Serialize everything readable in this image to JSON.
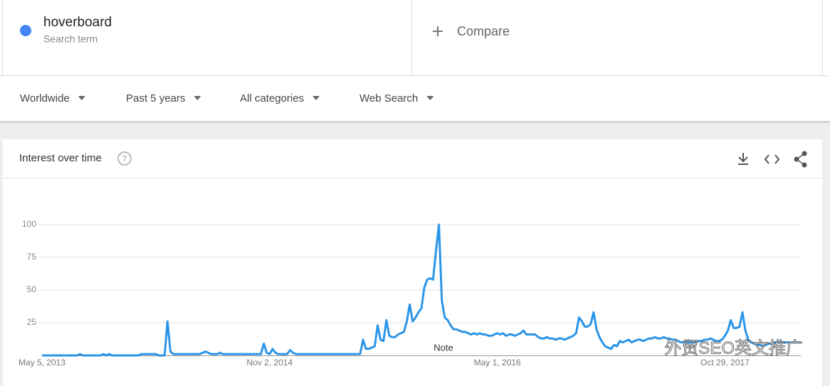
{
  "search_term": {
    "name": "hoverboard",
    "subtitle": "Search term",
    "color": "#4285f4"
  },
  "compare": {
    "label": "Compare"
  },
  "filters": [
    "Worldwide",
    "Past 5 years",
    "All categories",
    "Web Search"
  ],
  "card": {
    "title": "Interest over time"
  },
  "chart_data": {
    "type": "line",
    "x": [
      0,
      1,
      2,
      3,
      4,
      5,
      6,
      7,
      8,
      9,
      10,
      11,
      12,
      13,
      14,
      15,
      16,
      17,
      18,
      19,
      20,
      21,
      22,
      23,
      24,
      25,
      26,
      27,
      28,
      29,
      30,
      31,
      32,
      33,
      34,
      35,
      36,
      37,
      38,
      39,
      40,
      41,
      42,
      43,
      44,
      45,
      46,
      47,
      48,
      49,
      50,
      51,
      52,
      53,
      54,
      55,
      56,
      57,
      58,
      59,
      60,
      61,
      62,
      63,
      64,
      65,
      66,
      67,
      68,
      69,
      70,
      71,
      72,
      73,
      74,
      75,
      76,
      77,
      78,
      79,
      80,
      81,
      82,
      83,
      84,
      85,
      86,
      87,
      88,
      89,
      90,
      91,
      92,
      93,
      94,
      95,
      96,
      97,
      98,
      99,
      100,
      101,
      102,
      103,
      104,
      105,
      106,
      107,
      108,
      109,
      110,
      111,
      112,
      113,
      114,
      115,
      116,
      117,
      118,
      119,
      120,
      121,
      122,
      123,
      124,
      125,
      126,
      127,
      128,
      129,
      130,
      131,
      132,
      133,
      134,
      135,
      136,
      137,
      138,
      139,
      140,
      141,
      142,
      143,
      144,
      145,
      146,
      147,
      148,
      149,
      150,
      151,
      152,
      153,
      154,
      155,
      156,
      157,
      158,
      159,
      160,
      161,
      162,
      163,
      164,
      165,
      166,
      167,
      168,
      169,
      170,
      171,
      172,
      173,
      174,
      175,
      176,
      177,
      178,
      179,
      180,
      181,
      182,
      183,
      184,
      185,
      186,
      187,
      188,
      189,
      190,
      191,
      192,
      193,
      194,
      195,
      196,
      197,
      198,
      199,
      200,
      201,
      202,
      203,
      204,
      205,
      206,
      207,
      208,
      209,
      210,
      211,
      212,
      213,
      214,
      215,
      216,
      217,
      218,
      219,
      220,
      221,
      222,
      223,
      224,
      225,
      226,
      227,
      228,
      229,
      230,
      231,
      232,
      233,
      234,
      235,
      236,
      237,
      238,
      239,
      240,
      241,
      242,
      243,
      244,
      245,
      246,
      247,
      248,
      249,
      250,
      251,
      252,
      253,
      254,
      255,
      256,
      257,
      258,
      259,
      260
    ],
    "series": [
      {
        "color": "#2b95e8",
        "values": [
          0,
          0,
          0,
          0,
          0,
          0,
          0,
          0,
          0,
          0,
          0,
          0,
          0,
          1,
          0,
          0,
          0,
          0,
          0,
          0,
          0,
          1,
          0,
          1,
          0,
          0,
          0,
          0,
          0,
          0,
          0,
          0,
          0,
          0,
          1,
          1,
          1,
          1,
          1,
          1,
          0,
          0,
          0,
          26,
          3,
          1,
          1,
          1,
          1,
          1,
          1,
          1,
          1,
          1,
          1,
          2,
          3,
          2,
          1,
          1,
          1,
          2,
          1,
          1,
          1,
          1,
          1,
          1,
          1,
          1,
          1,
          1,
          1,
          1,
          1,
          1,
          9,
          2,
          1,
          5,
          2,
          1,
          1,
          1,
          1,
          4,
          2,
          1,
          1,
          1,
          1,
          1,
          1,
          1,
          1,
          1,
          1,
          1,
          1,
          1,
          1,
          1,
          1,
          1,
          1,
          1,
          1,
          1,
          1,
          1,
          12,
          5,
          5,
          6,
          7,
          23,
          12,
          11,
          27,
          15,
          14,
          14,
          16,
          17,
          18,
          26,
          39,
          26,
          29,
          33,
          36,
          52,
          58,
          59,
          58,
          80,
          100,
          42,
          29,
          27,
          23,
          20,
          20,
          19,
          18,
          18,
          17,
          16,
          17,
          16,
          17,
          16,
          16,
          15,
          15,
          16,
          17,
          16,
          17,
          15,
          16,
          16,
          15,
          16,
          17,
          19,
          16,
          16,
          16,
          16,
          14,
          13,
          13,
          14,
          13,
          13,
          12,
          13,
          13,
          12,
          13,
          14,
          15,
          17,
          29,
          26,
          22,
          22,
          24,
          33,
          20,
          14,
          10,
          7,
          6,
          5,
          8,
          7,
          11,
          10,
          11,
          12,
          10,
          11,
          12,
          12,
          11,
          12,
          13,
          13,
          14,
          13,
          13,
          14,
          13,
          13,
          12,
          12,
          11,
          10,
          10,
          10,
          10,
          10,
          10,
          11,
          11,
          12,
          12,
          13,
          12,
          11,
          11,
          12,
          15,
          19,
          27,
          21,
          21,
          22,
          33,
          19,
          12,
          10,
          9,
          8,
          8,
          7,
          8,
          9,
          9,
          10,
          10,
          10,
          10,
          10,
          10,
          10,
          10,
          10,
          10
        ]
      }
    ],
    "xlim": [
      0,
      260
    ],
    "xticks": [
      {
        "value": 0,
        "label": "May 5, 2013"
      },
      {
        "value": 78,
        "label": "Nov 2, 2014"
      },
      {
        "value": 156,
        "label": "May 1, 2016"
      },
      {
        "value": 234,
        "label": "Oct 29, 2017"
      }
    ],
    "ylim": [
      0,
      100
    ],
    "yticks": [
      25,
      50,
      75,
      100
    ],
    "grid": true,
    "annotations": [
      "Note"
    ]
  },
  "watermark": "外贸SEO英文推广"
}
